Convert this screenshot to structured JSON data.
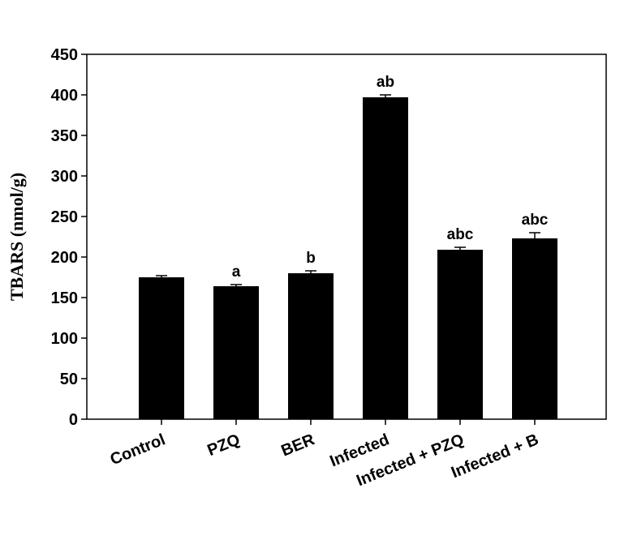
{
  "chart_data": {
    "type": "bar",
    "ylabel": "TBARS (nmol/g)",
    "xlabel": "",
    "ylim": [
      0,
      450
    ],
    "yticks": [
      "0",
      "50",
      "100",
      "150",
      "200",
      "250",
      "300",
      "350",
      "400",
      "450"
    ],
    "categories": [
      "Control",
      "PZQ",
      "BER",
      "Infected",
      "Infected + PZQ",
      "Infected + B"
    ],
    "values": [
      175,
      164,
      180,
      397,
      209,
      223
    ],
    "errors": [
      2,
      2,
      3,
      3,
      3,
      7
    ],
    "significance": [
      "",
      "a",
      "b",
      "ab",
      "abc",
      "abc"
    ],
    "bar_color": "#000000",
    "grid": false
  }
}
